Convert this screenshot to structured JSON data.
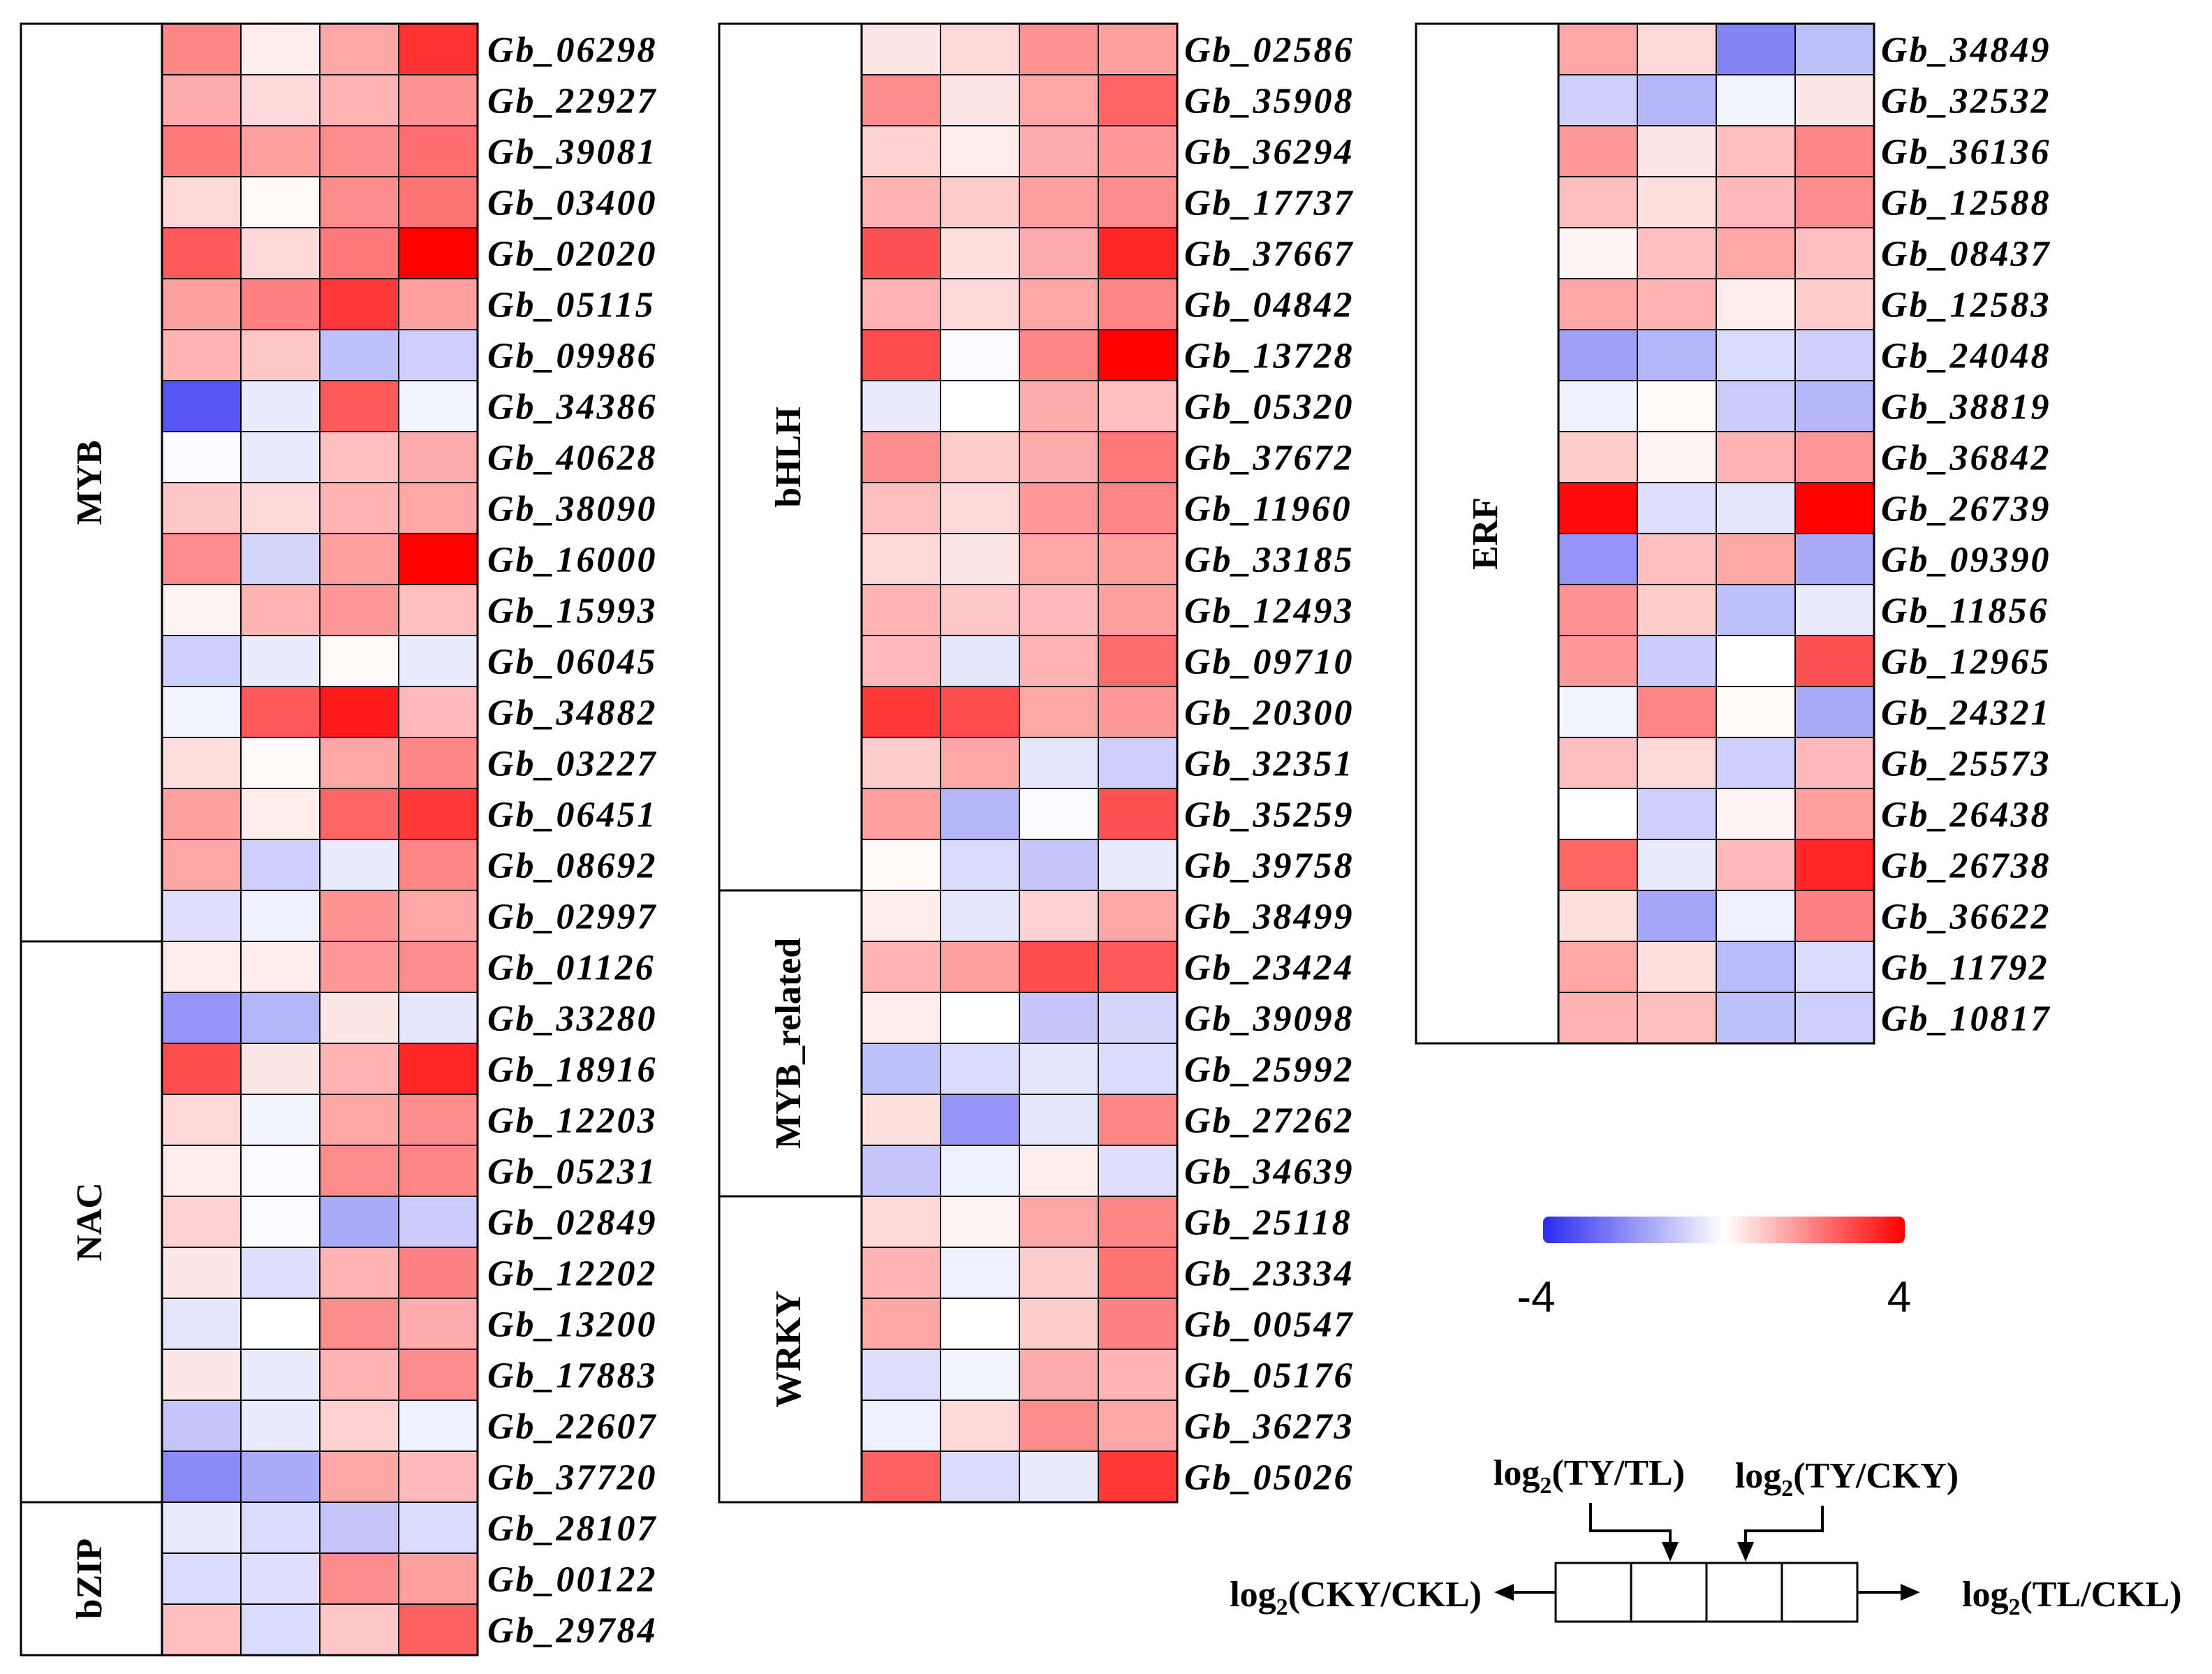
{
  "chart_data": {
    "type": "heatmap",
    "title": "",
    "color_scale": {
      "min": -4,
      "max": 4,
      "min_label": "-4",
      "max_label": "4",
      "low_color": "#2b2bf0",
      "mid_color": "#ffffff",
      "high_color": "#ff0000"
    },
    "columns": [
      "log2(CKY/CKL)",
      "log2(TY/TL)",
      "log2(TY/CKY)",
      "log2(TL/CKL)"
    ],
    "panels": [
      {
        "groups": [
          {
            "family": "MYB",
            "rows": [
              {
                "gene": "Gb_06298",
                "values": [
                  1.9,
                  0.3,
                  1.4,
                  3.2
                ]
              },
              {
                "gene": "Gb_22927",
                "values": [
                  1.3,
                  0.6,
                  1.2,
                  1.7
                ]
              },
              {
                "gene": "Gb_39081",
                "values": [
                  2.1,
                  1.5,
                  1.8,
                  2.3
                ]
              },
              {
                "gene": "Gb_03400",
                "values": [
                  0.6,
                  0.1,
                  1.8,
                  2.2
                ]
              },
              {
                "gene": "Gb_02020",
                "values": [
                  2.6,
                  0.6,
                  2.1,
                  4.0
                ]
              },
              {
                "gene": "Gb_05115",
                "values": [
                  1.5,
                  2.0,
                  3.1,
                  1.5
                ]
              },
              {
                "gene": "Gb_09986",
                "values": [
                  1.2,
                  0.9,
                  -1.2,
                  -0.9
                ]
              },
              {
                "gene": "Gb_34386",
                "values": [
                  -3.2,
                  -0.4,
                  2.6,
                  -0.2
                ]
              },
              {
                "gene": "Gb_40628",
                "values": [
                  -0.1,
                  -0.4,
                  1.0,
                  1.3
                ]
              },
              {
                "gene": "Gb_38090",
                "values": [
                  0.9,
                  0.6,
                  1.2,
                  1.4
                ]
              },
              {
                "gene": "Gb_16000",
                "values": [
                  1.8,
                  -0.8,
                  1.5,
                  4.0
                ]
              },
              {
                "gene": "Gb_15993",
                "values": [
                  0.2,
                  1.2,
                  1.6,
                  1.0
                ]
              },
              {
                "gene": "Gb_06045",
                "values": [
                  -0.9,
                  -0.4,
                  0.1,
                  -0.4
                ]
              },
              {
                "gene": "Gb_34882",
                "values": [
                  -0.2,
                  2.6,
                  3.6,
                  1.1
                ]
              },
              {
                "gene": "Gb_03227",
                "values": [
                  0.5,
                  0.1,
                  1.4,
                  1.9
                ]
              },
              {
                "gene": "Gb_06451",
                "values": [
                  1.5,
                  0.3,
                  2.4,
                  3.1
                ]
              },
              {
                "gene": "Gb_08692",
                "values": [
                  1.4,
                  -0.9,
                  -0.4,
                  1.9
                ]
              },
              {
                "gene": "Gb_02997",
                "values": [
                  -0.6,
                  -0.3,
                  1.7,
                  1.4
                ]
              }
            ]
          },
          {
            "family": "NAC",
            "rows": [
              {
                "gene": "Gb_01126",
                "values": [
                  0.3,
                  0.3,
                  1.6,
                  1.8
                ]
              },
              {
                "gene": "Gb_33280",
                "values": [
                  -2.0,
                  -1.4,
                  0.4,
                  -0.5
                ]
              },
              {
                "gene": "Gb_18916",
                "values": [
                  2.8,
                  0.4,
                  1.2,
                  3.4
                ]
              },
              {
                "gene": "Gb_12203",
                "values": [
                  0.6,
                  -0.2,
                  1.4,
                  1.8
                ]
              },
              {
                "gene": "Gb_05231",
                "values": [
                  0.3,
                  -0.1,
                  1.8,
                  1.9
                ]
              },
              {
                "gene": "Gb_02849",
                "values": [
                  0.7,
                  -0.1,
                  -1.6,
                  -1.0
                ]
              },
              {
                "gene": "Gb_12202",
                "values": [
                  0.4,
                  -0.6,
                  1.2,
                  2.0
                ]
              },
              {
                "gene": "Gb_13200",
                "values": [
                  -0.5,
                  0.0,
                  1.8,
                  1.3
                ]
              },
              {
                "gene": "Gb_17883",
                "values": [
                  0.4,
                  -0.4,
                  1.2,
                  1.8
                ]
              },
              {
                "gene": "Gb_22607",
                "values": [
                  -1.1,
                  -0.4,
                  0.7,
                  -0.3
                ]
              },
              {
                "gene": "Gb_37720",
                "values": [
                  -2.2,
                  -1.6,
                  1.4,
                  1.1
                ]
              }
            ]
          },
          {
            "family": "bZIP",
            "rows": [
              {
                "gene": "Gb_28107",
                "values": [
                  -0.4,
                  -0.7,
                  -1.1,
                  -0.7
                ]
              },
              {
                "gene": "Gb_00122",
                "values": [
                  -0.7,
                  -0.6,
                  1.8,
                  1.5
                ]
              },
              {
                "gene": "Gb_29784",
                "values": [
                  1.0,
                  -0.7,
                  0.9,
                  2.5
                ]
              }
            ]
          }
        ]
      },
      {
        "groups": [
          {
            "family": "bHLH",
            "rows": [
              {
                "gene": "Gb_02586",
                "values": [
                  0.4,
                  0.6,
                  1.7,
                  1.5
                ]
              },
              {
                "gene": "Gb_35908",
                "values": [
                  1.8,
                  0.4,
                  1.4,
                  2.4
                ]
              },
              {
                "gene": "Gb_36294",
                "values": [
                  0.7,
                  0.3,
                  1.3,
                  1.6
                ]
              },
              {
                "gene": "Gb_17737",
                "values": [
                  1.2,
                  0.8,
                  1.5,
                  1.8
                ]
              },
              {
                "gene": "Gb_37667",
                "values": [
                  2.7,
                  0.5,
                  1.3,
                  3.4
                ]
              },
              {
                "gene": "Gb_04842",
                "values": [
                  1.2,
                  0.6,
                  1.4,
                  1.9
                ]
              },
              {
                "gene": "Gb_13728",
                "values": [
                  2.8,
                  -0.1,
                  1.9,
                  4.0
                ]
              },
              {
                "gene": "Gb_05320",
                "values": [
                  -0.4,
                  0.0,
                  1.3,
                  1.0
                ]
              },
              {
                "gene": "Gb_37672",
                "values": [
                  1.8,
                  0.8,
                  1.3,
                  2.1
                ]
              },
              {
                "gene": "Gb_11960",
                "values": [
                  1.0,
                  0.6,
                  1.6,
                  1.9
                ]
              },
              {
                "gene": "Gb_33185",
                "values": [
                  0.6,
                  0.4,
                  1.4,
                  1.5
                ]
              },
              {
                "gene": "Gb_12493",
                "values": [
                  1.2,
                  0.9,
                  1.1,
                  1.5
                ]
              },
              {
                "gene": "Gb_09710",
                "values": [
                  1.1,
                  -0.5,
                  1.2,
                  2.3
                ]
              },
              {
                "gene": "Gb_20300",
                "values": [
                  3.1,
                  2.8,
                  1.4,
                  1.6
                ]
              },
              {
                "gene": "Gb_32351",
                "values": [
                  0.8,
                  1.4,
                  -0.5,
                  -0.9
                ]
              },
              {
                "gene": "Gb_35259",
                "values": [
                  1.5,
                  -1.4,
                  -0.1,
                  2.7
                ]
              },
              {
                "gene": "Gb_39758",
                "values": [
                  0.1,
                  -0.7,
                  -1.1,
                  -0.4
                ]
              }
            ]
          },
          {
            "family": "MYB_related",
            "rows": [
              {
                "gene": "Gb_38499",
                "values": [
                  0.3,
                  -0.5,
                  0.7,
                  1.4
                ]
              },
              {
                "gene": "Gb_23424",
                "values": [
                  1.2,
                  1.5,
                  2.8,
                  2.6
                ]
              },
              {
                "gene": "Gb_39098",
                "values": [
                  0.3,
                  0.0,
                  -1.1,
                  -0.8
                ]
              },
              {
                "gene": "Gb_25992",
                "values": [
                  -1.2,
                  -0.7,
                  -0.5,
                  -0.7
                ]
              },
              {
                "gene": "Gb_27262",
                "values": [
                  0.5,
                  -2.0,
                  -0.5,
                  1.9
                ]
              },
              {
                "gene": "Gb_34639",
                "values": [
                  -1.1,
                  -0.3,
                  0.3,
                  -0.6
                ]
              }
            ]
          },
          {
            "family": "WRKY",
            "rows": [
              {
                "gene": "Gb_25118",
                "values": [
                  0.6,
                  0.2,
                  1.4,
                  1.9
                ]
              },
              {
                "gene": "Gb_23334",
                "values": [
                  1.2,
                  -0.3,
                  0.8,
                  2.2
                ]
              },
              {
                "gene": "Gb_00547",
                "values": [
                  1.4,
                  0.0,
                  0.8,
                  2.0
                ]
              },
              {
                "gene": "Gb_05176",
                "values": [
                  -0.6,
                  -0.2,
                  1.3,
                  1.2
                ]
              },
              {
                "gene": "Gb_36273",
                "values": [
                  -0.3,
                  0.6,
                  1.8,
                  1.4
                ]
              },
              {
                "gene": "Gb_05026",
                "values": [
                  2.5,
                  -0.7,
                  -0.4,
                  3.1
                ]
              }
            ]
          }
        ]
      },
      {
        "groups": [
          {
            "family": "ERF",
            "rows": [
              {
                "gene": "Gb_34849",
                "values": [
                  1.4,
                  0.6,
                  -2.3,
                  -1.2
                ]
              },
              {
                "gene": "Gb_32532",
                "values": [
                  -0.9,
                  -1.4,
                  -0.2,
                  0.4
                ]
              },
              {
                "gene": "Gb_36136",
                "values": [
                  1.6,
                  0.4,
                  1.0,
                  1.9
                ]
              },
              {
                "gene": "Gb_12588",
                "values": [
                  1.0,
                  0.5,
                  1.1,
                  1.8
                ]
              },
              {
                "gene": "Gb_08437",
                "values": [
                  0.2,
                  1.0,
                  1.4,
                  1.0
                ]
              },
              {
                "gene": "Gb_12583",
                "values": [
                  1.4,
                  1.2,
                  0.3,
                  0.8
                ]
              },
              {
                "gene": "Gb_24048",
                "values": [
                  -1.8,
                  -1.4,
                  -0.7,
                  -0.9
                ]
              },
              {
                "gene": "Gb_38819",
                "values": [
                  -0.3,
                  0.1,
                  -1.0,
                  -1.4
                ]
              },
              {
                "gene": "Gb_36842",
                "values": [
                  0.8,
                  0.2,
                  1.2,
                  1.6
                ]
              },
              {
                "gene": "Gb_26739",
                "values": [
                  3.8,
                  -0.6,
                  -0.5,
                  4.0
                ]
              },
              {
                "gene": "Gb_09390",
                "values": [
                  -2.0,
                  1.0,
                  1.4,
                  -1.6
                ]
              },
              {
                "gene": "Gb_11856",
                "values": [
                  1.7,
                  0.8,
                  -1.2,
                  -0.4
                ]
              },
              {
                "gene": "Gb_12965",
                "values": [
                  1.6,
                  -1.0,
                  0.0,
                  2.7
                ]
              },
              {
                "gene": "Gb_24321",
                "values": [
                  -0.2,
                  1.9,
                  0.1,
                  -1.6
                ]
              },
              {
                "gene": "Gb_25573",
                "values": [
                  1.0,
                  0.6,
                  -0.9,
                  1.1
                ]
              },
              {
                "gene": "Gb_26438",
                "values": [
                  0.0,
                  -0.9,
                  0.2,
                  1.5
                ]
              },
              {
                "gene": "Gb_26738",
                "values": [
                  2.4,
                  -0.4,
                  1.1,
                  3.4
                ]
              },
              {
                "gene": "Gb_36622",
                "values": [
                  0.5,
                  -1.7,
                  -0.3,
                  2.0
                ]
              },
              {
                "gene": "Gb_11792",
                "values": [
                  1.4,
                  0.5,
                  -1.3,
                  -0.7
                ]
              },
              {
                "gene": "Gb_10817",
                "values": [
                  1.2,
                  1.0,
                  -1.2,
                  -0.9
                ]
              }
            ]
          }
        ]
      }
    ],
    "key": {
      "top_left": {
        "base": "log",
        "sub": "2",
        "text": "(TY/TL)"
      },
      "top_right": {
        "base": "log",
        "sub": "2",
        "text": "(TY/CKY)"
      },
      "left": {
        "base": "log",
        "sub": "2",
        "text": "(CKY/CKL)"
      },
      "right": {
        "base": "log",
        "sub": "2",
        "text": "(TL/CKL)"
      }
    }
  }
}
